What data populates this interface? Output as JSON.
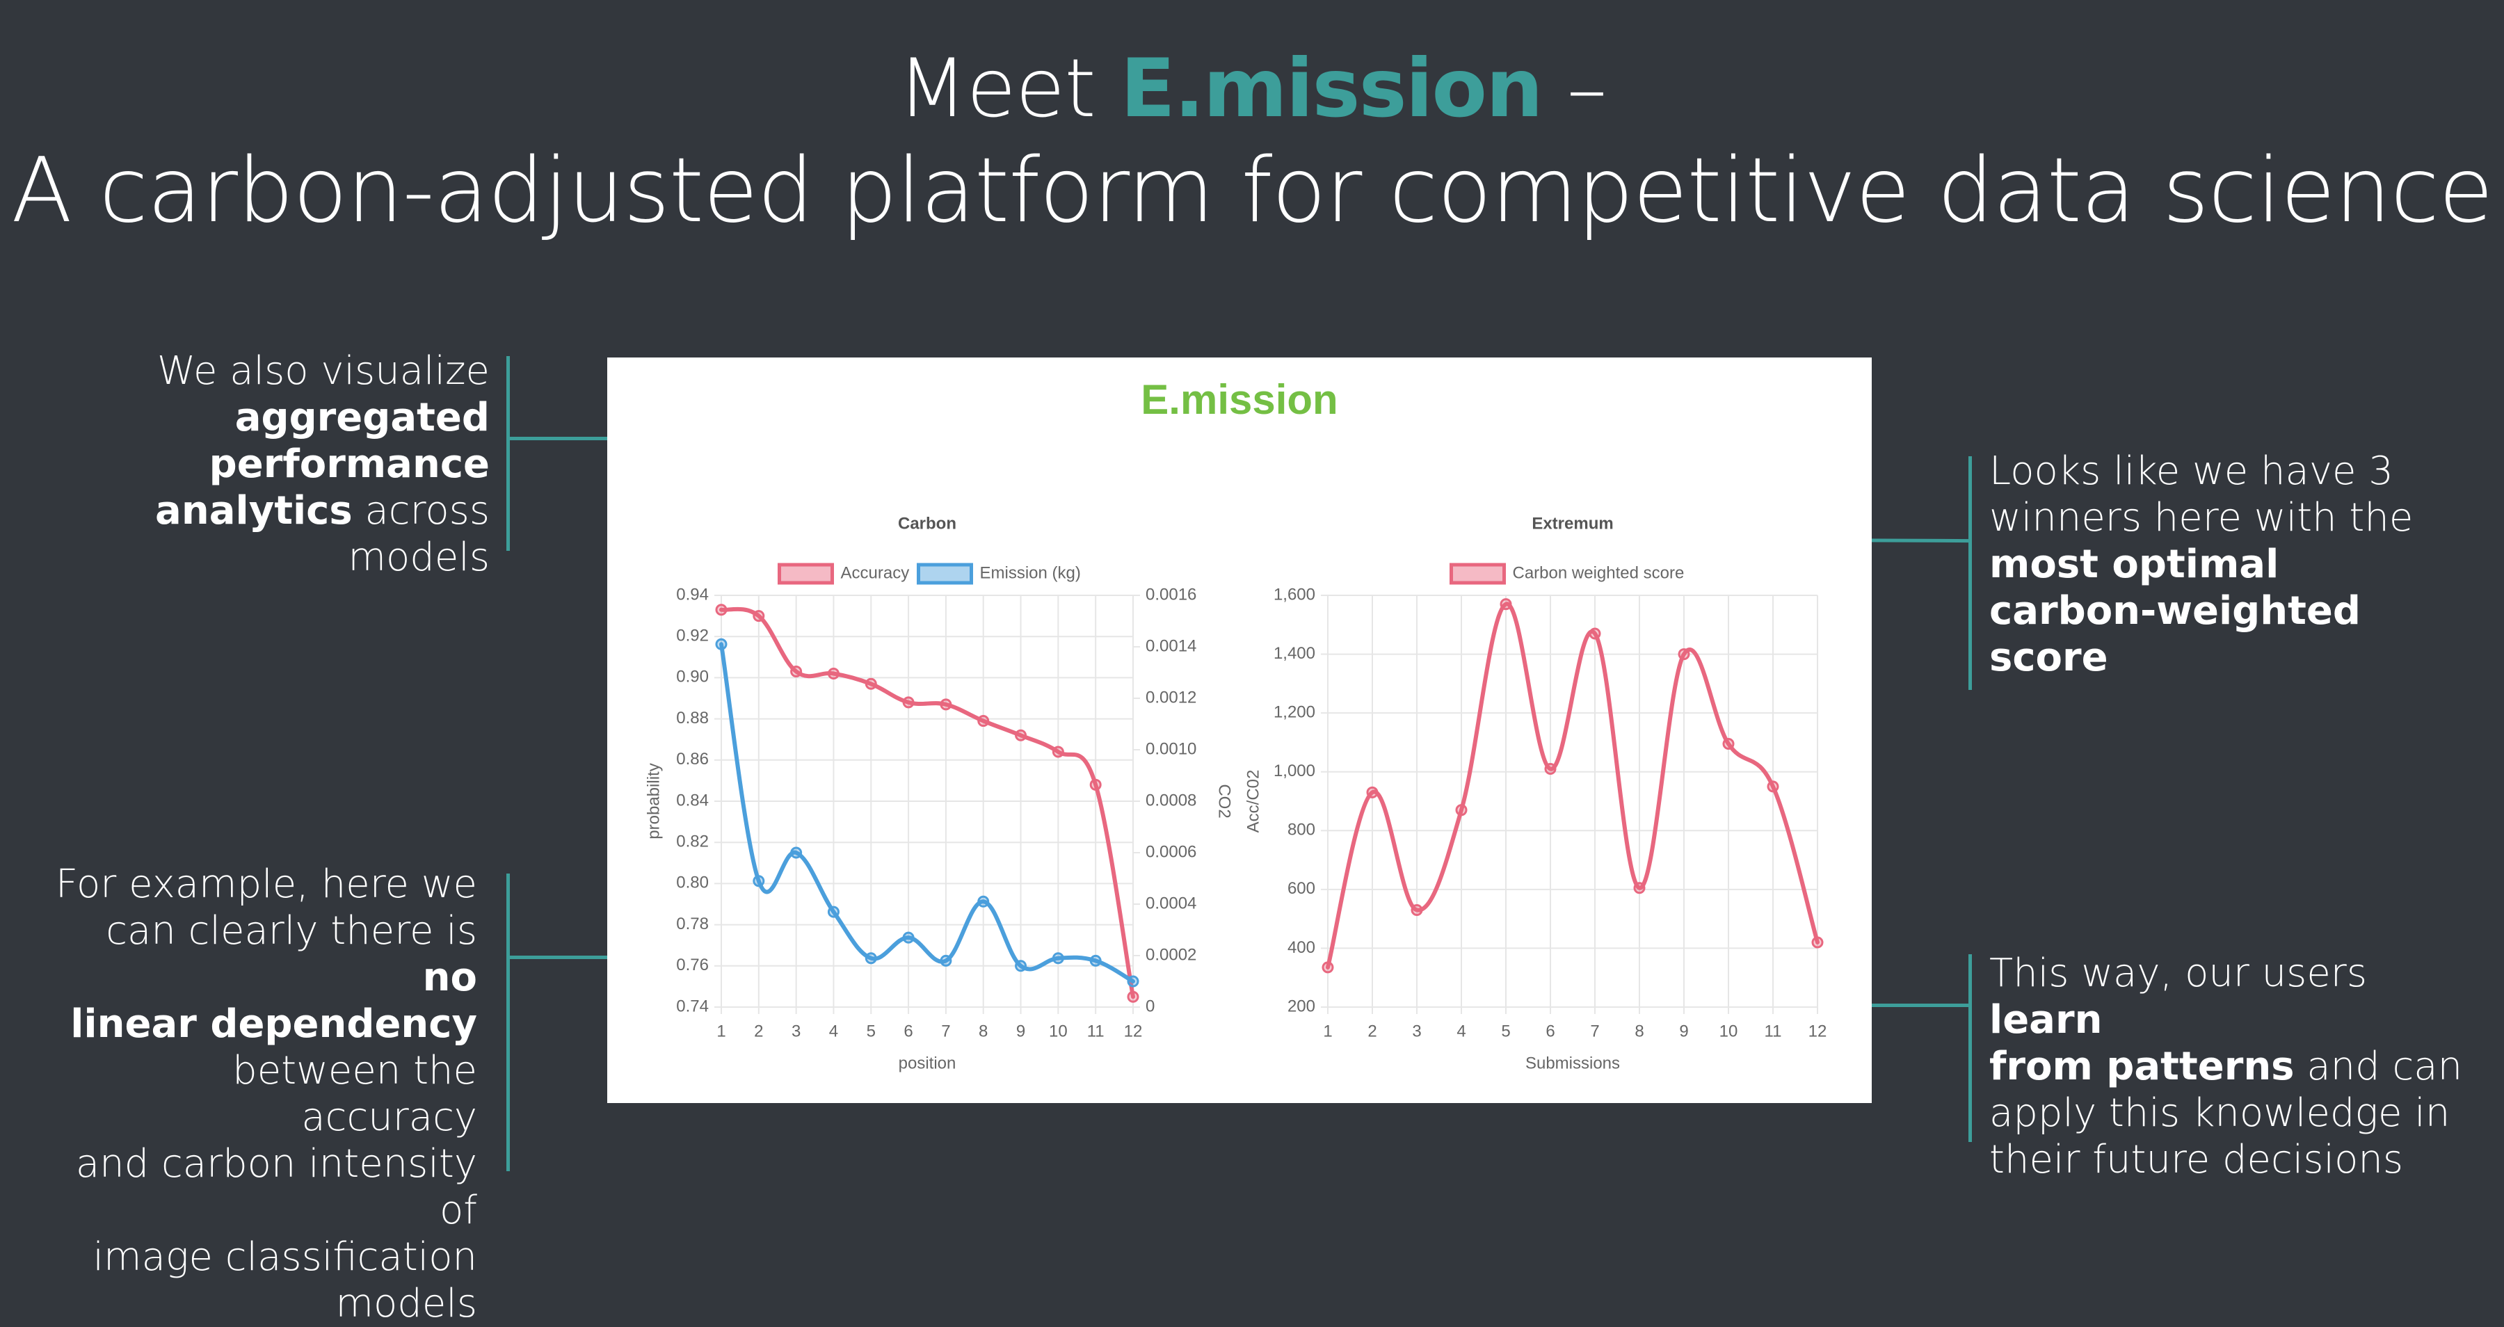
{
  "header": {
    "line1_prefix": "Meet ",
    "line1_brand": "E.mission",
    "line1_suffix": " –",
    "line2": "A carbon-adjusted platform for competitive data science"
  },
  "notes": {
    "top_left": {
      "t1": "We also visualize",
      "b1": "aggregated",
      "b2": "performance",
      "b3": "analytics",
      "t2": " across",
      "t3": "models"
    },
    "bottom_left": {
      "t1": "For example, here we",
      "t2": "can clearly there is ",
      "b1": "no",
      "b2": "linear dependency",
      "t3": "between the accuracy",
      "t4": "and carbon intensity of",
      "t5": "image classification",
      "t6": "models"
    },
    "top_right": {
      "t1": "Looks like we have 3",
      "t2": "winners here with the",
      "b1": "most optimal",
      "b2": "carbon-weighted score"
    },
    "bottom_right": {
      "t1": "This way, our users ",
      "b1": "learn",
      "b2": "from patterns",
      "t2": " and can",
      "t3": "apply this knowledge in",
      "t4": "their future decisions"
    }
  },
  "panel": {
    "title": "E.mission"
  },
  "colors": {
    "background": "#33373d",
    "accent": "#3d9e9a",
    "panel_title": "#74bf44",
    "accuracy": "#e8677f",
    "emission": "#4b9fdc"
  },
  "chart_data": [
    {
      "type": "line",
      "title": "Carbon",
      "xlabel": "position",
      "ylabel": "probability",
      "y2label": "CO2",
      "x": [
        1,
        2,
        3,
        4,
        5,
        6,
        7,
        8,
        9,
        10,
        11,
        12
      ],
      "ylim": [
        0.74,
        0.94
      ],
      "yticks": [
        "0.94",
        "0.92",
        "0.90",
        "0.88",
        "0.86",
        "0.84",
        "0.82",
        "0.80",
        "0.78",
        "0.76",
        "0.74"
      ],
      "y2lim": [
        0,
        0.0016
      ],
      "y2ticks": [
        "0.0016",
        "0.0014",
        "0.0012",
        "0.0010",
        "0.0008",
        "0.0006",
        "0.0004",
        "0.0002",
        "0"
      ],
      "legend_position": "top",
      "grid": true,
      "series": [
        {
          "name": "Accuracy",
          "axis": "left",
          "color": "#e8677f",
          "values": [
            0.933,
            0.93,
            0.903,
            0.902,
            0.897,
            0.888,
            0.887,
            0.879,
            0.872,
            0.864,
            0.848,
            0.745
          ]
        },
        {
          "name": "Emission (kg)",
          "axis": "right",
          "color": "#4b9fdc",
          "values": [
            0.00141,
            0.00049,
            0.0006,
            0.00037,
            0.00019,
            0.00027,
            0.00018,
            0.00041,
            0.00016,
            0.00019,
            0.00018,
            0.0001
          ]
        }
      ]
    },
    {
      "type": "line",
      "title": "Extremum",
      "xlabel": "Submissions",
      "ylabel": "Acc/C02",
      "x": [
        1,
        2,
        3,
        4,
        5,
        6,
        7,
        8,
        9,
        10,
        11,
        12
      ],
      "ylim": [
        200,
        1600
      ],
      "yticks": [
        "1,600",
        "1,400",
        "1,200",
        "1,000",
        "800",
        "600",
        "400",
        "200"
      ],
      "legend_position": "top",
      "grid": true,
      "series": [
        {
          "name": "Carbon weighted score",
          "axis": "left",
          "color": "#e8677f",
          "values": [
            335,
            930,
            530,
            870,
            1570,
            1010,
            1470,
            605,
            1400,
            1095,
            950,
            420
          ]
        }
      ]
    }
  ]
}
